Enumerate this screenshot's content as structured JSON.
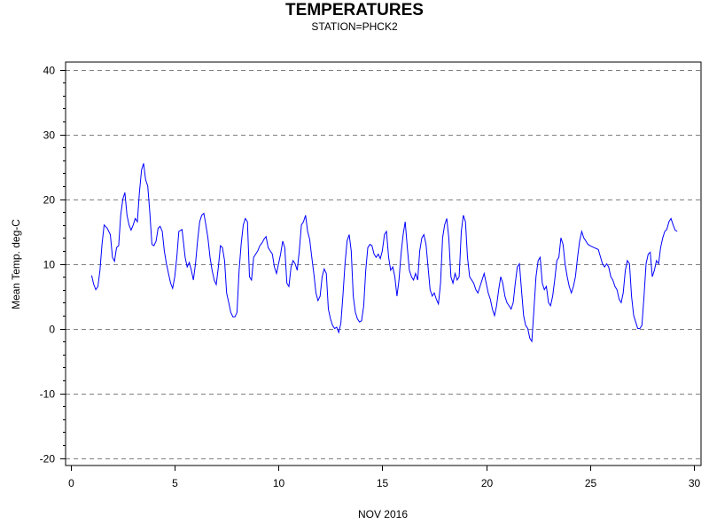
{
  "chart_data": {
    "type": "line",
    "title": "TEMPERATURES",
    "subtitle": "STATION=PHCK2",
    "xlabel": "NOV 2016",
    "ylabel": "Mean Temp. deg-C",
    "xlim": [
      0,
      30.3
    ],
    "ylim": [
      -21,
      41
    ],
    "x_ticks": [
      0,
      5,
      10,
      15,
      20,
      25,
      30
    ],
    "y_ticks": [
      -20,
      -10,
      0,
      10,
      20,
      30,
      40
    ],
    "grid": "horizontal-dashed",
    "colors": {
      "series": "#0000ff",
      "grid": "#808080"
    },
    "series": [
      {
        "values": [
          [
            1.0,
            8.2
          ],
          [
            1.1,
            6.8
          ],
          [
            1.2,
            6.0
          ],
          [
            1.3,
            6.5
          ],
          [
            1.4,
            9.0
          ],
          [
            1.5,
            13.0
          ],
          [
            1.6,
            16.0
          ],
          [
            1.75,
            15.5
          ],
          [
            1.9,
            14.5
          ],
          [
            2.0,
            11.0
          ],
          [
            2.1,
            10.4
          ],
          [
            2.2,
            12.5
          ],
          [
            2.3,
            12.8
          ],
          [
            2.4,
            17.5
          ],
          [
            2.5,
            20.0
          ],
          [
            2.6,
            21.0
          ],
          [
            2.7,
            17.5
          ],
          [
            2.8,
            16.0
          ],
          [
            2.9,
            15.2
          ],
          [
            3.0,
            16.0
          ],
          [
            3.1,
            17.0
          ],
          [
            3.2,
            16.5
          ],
          [
            3.3,
            21.0
          ],
          [
            3.4,
            24.5
          ],
          [
            3.5,
            25.5
          ],
          [
            3.6,
            23.0
          ],
          [
            3.7,
            22.0
          ],
          [
            3.8,
            18.0
          ],
          [
            3.9,
            13.0
          ],
          [
            4.0,
            12.8
          ],
          [
            4.1,
            13.5
          ],
          [
            4.2,
            15.5
          ],
          [
            4.3,
            15.8
          ],
          [
            4.4,
            15.0
          ],
          [
            4.5,
            12.0
          ],
          [
            4.6,
            10.0
          ],
          [
            4.7,
            8.5
          ],
          [
            4.8,
            7.0
          ],
          [
            4.9,
            6.2
          ],
          [
            5.0,
            8.0
          ],
          [
            5.1,
            11.0
          ],
          [
            5.2,
            15.0
          ],
          [
            5.35,
            15.3
          ],
          [
            5.5,
            11.0
          ],
          [
            5.6,
            9.5
          ],
          [
            5.7,
            10.2
          ],
          [
            5.8,
            9.0
          ],
          [
            5.9,
            7.5
          ],
          [
            6.0,
            10.0
          ],
          [
            6.1,
            13.5
          ],
          [
            6.2,
            16.5
          ],
          [
            6.3,
            17.5
          ],
          [
            6.4,
            17.8
          ],
          [
            6.5,
            16.0
          ],
          [
            6.6,
            14.0
          ],
          [
            6.7,
            11.0
          ],
          [
            6.8,
            9.0
          ],
          [
            6.9,
            7.5
          ],
          [
            7.0,
            6.8
          ],
          [
            7.1,
            9.5
          ],
          [
            7.2,
            12.8
          ],
          [
            7.3,
            12.5
          ],
          [
            7.4,
            10.5
          ],
          [
            7.5,
            5.5
          ],
          [
            7.6,
            4.0
          ],
          [
            7.7,
            2.5
          ],
          [
            7.8,
            1.8
          ],
          [
            7.9,
            1.8
          ],
          [
            8.0,
            2.5
          ],
          [
            8.1,
            9.0
          ],
          [
            8.2,
            13.0
          ],
          [
            8.3,
            16.0
          ],
          [
            8.4,
            17.0
          ],
          [
            8.5,
            16.5
          ],
          [
            8.6,
            8.0
          ],
          [
            8.7,
            7.5
          ],
          [
            8.8,
            11.0
          ],
          [
            8.9,
            11.5
          ],
          [
            9.0,
            12.0
          ],
          [
            9.1,
            12.8
          ],
          [
            9.2,
            13.2
          ],
          [
            9.3,
            13.8
          ],
          [
            9.4,
            14.2
          ],
          [
            9.5,
            12.5
          ],
          [
            9.6,
            12.0
          ],
          [
            9.7,
            11.5
          ],
          [
            9.8,
            9.5
          ],
          [
            9.9,
            8.5
          ],
          [
            10.0,
            10.0
          ],
          [
            10.1,
            11.5
          ],
          [
            10.2,
            13.5
          ],
          [
            10.3,
            12.5
          ],
          [
            10.4,
            7.0
          ],
          [
            10.5,
            6.5
          ],
          [
            10.6,
            9.5
          ],
          [
            10.7,
            10.5
          ],
          [
            10.8,
            10.0
          ],
          [
            10.9,
            9.0
          ],
          [
            11.0,
            12.0
          ],
          [
            11.1,
            16.0
          ],
          [
            11.2,
            16.5
          ],
          [
            11.3,
            17.5
          ],
          [
            11.4,
            15.0
          ],
          [
            11.5,
            13.8
          ],
          [
            11.6,
            11.0
          ],
          [
            11.7,
            8.5
          ],
          [
            11.8,
            5.5
          ],
          [
            11.9,
            4.3
          ],
          [
            12.0,
            5.0
          ],
          [
            12.1,
            8.0
          ],
          [
            12.2,
            9.2
          ],
          [
            12.3,
            8.5
          ],
          [
            12.4,
            3.0
          ],
          [
            12.5,
            1.5
          ],
          [
            12.6,
            0.5
          ],
          [
            12.7,
            0.0
          ],
          [
            12.8,
            0.2
          ],
          [
            12.9,
            -0.6
          ],
          [
            13.0,
            0.8
          ],
          [
            13.1,
            5.0
          ],
          [
            13.2,
            10.0
          ],
          [
            13.3,
            13.5
          ],
          [
            13.4,
            14.5
          ],
          [
            13.5,
            12.0
          ],
          [
            13.6,
            5.0
          ],
          [
            13.7,
            2.5
          ],
          [
            13.8,
            1.5
          ],
          [
            13.9,
            1.0
          ],
          [
            14.0,
            1.2
          ],
          [
            14.1,
            3.5
          ],
          [
            14.2,
            9.0
          ],
          [
            14.3,
            12.5
          ],
          [
            14.4,
            13.0
          ],
          [
            14.5,
            12.8
          ],
          [
            14.6,
            11.5
          ],
          [
            14.7,
            11.0
          ],
          [
            14.8,
            11.5
          ],
          [
            14.9,
            10.8
          ],
          [
            15.0,
            12.0
          ],
          [
            15.1,
            14.5
          ],
          [
            15.2,
            15.0
          ],
          [
            15.3,
            11.0
          ],
          [
            15.4,
            9.0
          ],
          [
            15.5,
            9.5
          ],
          [
            15.6,
            8.0
          ],
          [
            15.7,
            5.0
          ],
          [
            15.8,
            7.5
          ],
          [
            15.9,
            11.5
          ],
          [
            16.0,
            14.5
          ],
          [
            16.1,
            16.5
          ],
          [
            16.2,
            12.5
          ],
          [
            16.3,
            9.0
          ],
          [
            16.4,
            8.0
          ],
          [
            16.5,
            7.5
          ],
          [
            16.6,
            8.5
          ],
          [
            16.7,
            7.5
          ],
          [
            16.8,
            12.0
          ],
          [
            16.9,
            14.0
          ],
          [
            17.0,
            14.5
          ],
          [
            17.1,
            13.0
          ],
          [
            17.2,
            9.5
          ],
          [
            17.3,
            6.0
          ],
          [
            17.4,
            5.0
          ],
          [
            17.5,
            5.5
          ],
          [
            17.6,
            4.5
          ],
          [
            17.7,
            3.8
          ],
          [
            17.8,
            7.0
          ],
          [
            17.9,
            14.0
          ],
          [
            18.0,
            16.0
          ],
          [
            18.1,
            17.0
          ],
          [
            18.2,
            14.0
          ],
          [
            18.3,
            8.0
          ],
          [
            18.4,
            7.0
          ],
          [
            18.5,
            8.5
          ],
          [
            18.6,
            7.5
          ],
          [
            18.7,
            8.0
          ],
          [
            18.8,
            15.0
          ],
          [
            18.9,
            17.5
          ],
          [
            19.0,
            16.5
          ],
          [
            19.1,
            11.0
          ],
          [
            19.2,
            8.0
          ],
          [
            19.3,
            7.5
          ],
          [
            19.4,
            7.0
          ],
          [
            19.5,
            6.0
          ],
          [
            19.6,
            5.5
          ],
          [
            19.7,
            6.5
          ],
          [
            19.8,
            7.5
          ],
          [
            19.9,
            8.5
          ],
          [
            20.0,
            7.0
          ],
          [
            20.1,
            5.5
          ],
          [
            20.2,
            4.5
          ],
          [
            20.3,
            3.0
          ],
          [
            20.4,
            2.0
          ],
          [
            20.5,
            3.5
          ],
          [
            20.6,
            6.0
          ],
          [
            20.7,
            8.0
          ],
          [
            20.8,
            7.0
          ],
          [
            20.9,
            5.0
          ],
          [
            21.0,
            4.0
          ],
          [
            21.1,
            3.5
          ],
          [
            21.2,
            3.0
          ],
          [
            21.3,
            4.0
          ],
          [
            21.4,
            7.0
          ],
          [
            21.5,
            9.5
          ],
          [
            21.6,
            10.0
          ],
          [
            21.7,
            6.0
          ],
          [
            21.8,
            2.0
          ],
          [
            21.9,
            0.5
          ],
          [
            22.0,
            0.0
          ],
          [
            22.1,
            -1.5
          ],
          [
            22.2,
            -2.0
          ],
          [
            22.3,
            3.0
          ],
          [
            22.4,
            8.0
          ],
          [
            22.5,
            10.5
          ],
          [
            22.6,
            11.0
          ],
          [
            22.7,
            7.0
          ],
          [
            22.8,
            6.0
          ],
          [
            22.9,
            6.5
          ],
          [
            23.0,
            4.0
          ],
          [
            23.1,
            3.5
          ],
          [
            23.2,
            5.0
          ],
          [
            23.3,
            7.5
          ],
          [
            23.4,
            10.5
          ],
          [
            23.5,
            11.0
          ],
          [
            23.6,
            14.0
          ],
          [
            23.7,
            13.0
          ],
          [
            23.8,
            10.0
          ],
          [
            23.9,
            8.0
          ],
          [
            24.0,
            6.5
          ],
          [
            24.1,
            5.5
          ],
          [
            24.2,
            6.5
          ],
          [
            24.3,
            8.0
          ],
          [
            24.4,
            11.0
          ],
          [
            24.5,
            13.5
          ],
          [
            24.6,
            15.0
          ],
          [
            24.7,
            14.0
          ],
          [
            24.8,
            13.5
          ],
          [
            24.9,
            13.0
          ],
          [
            25.0,
            12.8
          ],
          [
            25.2,
            12.5
          ],
          [
            25.4,
            12.2
          ],
          [
            25.6,
            10.0
          ],
          [
            25.7,
            9.5
          ],
          [
            25.8,
            10.0
          ],
          [
            25.9,
            9.5
          ],
          [
            26.0,
            8.0
          ],
          [
            26.1,
            7.5
          ],
          [
            26.2,
            6.5
          ],
          [
            26.3,
            6.0
          ],
          [
            26.4,
            4.5
          ],
          [
            26.5,
            4.0
          ],
          [
            26.6,
            5.5
          ],
          [
            26.7,
            9.0
          ],
          [
            26.8,
            10.5
          ],
          [
            26.9,
            10.0
          ],
          [
            27.0,
            5.0
          ],
          [
            27.1,
            2.0
          ],
          [
            27.2,
            1.0
          ],
          [
            27.3,
            0.0
          ],
          [
            27.4,
            0.0
          ],
          [
            27.5,
            0.5
          ],
          [
            27.6,
            5.0
          ],
          [
            27.7,
            10.0
          ],
          [
            27.8,
            11.5
          ],
          [
            27.9,
            11.8
          ],
          [
            28.0,
            8.0
          ],
          [
            28.1,
            9.0
          ],
          [
            28.2,
            10.5
          ],
          [
            28.3,
            10.0
          ],
          [
            28.4,
            12.5
          ],
          [
            28.5,
            14.0
          ],
          [
            28.6,
            15.0
          ],
          [
            28.7,
            15.3
          ],
          [
            28.8,
            16.5
          ],
          [
            28.9,
            17.0
          ],
          [
            29.0,
            16.0
          ],
          [
            29.1,
            15.2
          ],
          [
            29.2,
            15.0
          ]
        ]
      }
    ]
  }
}
